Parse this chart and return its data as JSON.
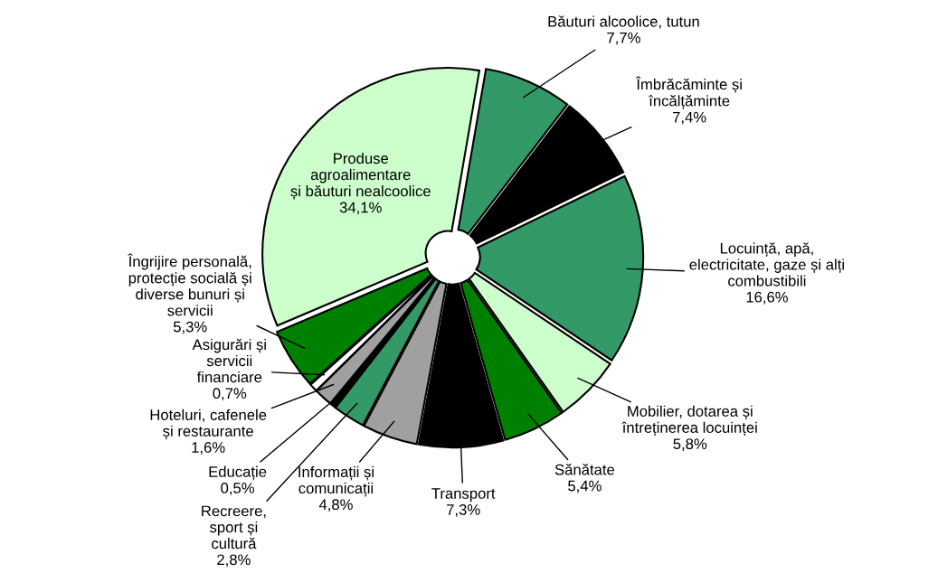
{
  "chart_data": {
    "type": "donut",
    "categories": [
      "Produse\nagroalimentare\nși băuturi nealcoolice",
      "Băuturi alcoolice, tutun",
      "Îmbrăcăminte și\nîncălțăminte",
      "Locuință, apă,\nelectricitate, gaze și alți\ncombustibili",
      "Mobilier, dotarea și\nîntreținerea locuinței",
      "Sănătate",
      "Transport",
      "Informații și\ncomunicații",
      "Recreere,\nsport și\ncultură",
      "Educație",
      "Hoteluri, cafenele\nși restaurante",
      "Asigurări și\nservicii\nfinanciare",
      "Îngrijire personală,\nprotecție socială și\ndiverse bunuri și\nservicii"
    ],
    "values": [
      34.1,
      7.7,
      7.4,
      16.6,
      5.8,
      5.4,
      7.3,
      4.8,
      2.8,
      0.5,
      1.6,
      0.7,
      5.3
    ],
    "value_labels": [
      "34,1%",
      "7,7%",
      "7,4%",
      "16,6%",
      "5,8%",
      "5,4%",
      "7,3%",
      "4,8%",
      "2,8%",
      "0,5%",
      "1,6%",
      "0,7%",
      "5,3%"
    ],
    "colors": [
      "#ccffcc",
      "#339966",
      "#000000",
      "#339966",
      "#ccffcc",
      "#008000",
      "#000000",
      "#a0a0a0",
      "#339966",
      "#000000",
      "#a0a0a0",
      "#ffffff",
      "#008000"
    ],
    "legend": false
  }
}
